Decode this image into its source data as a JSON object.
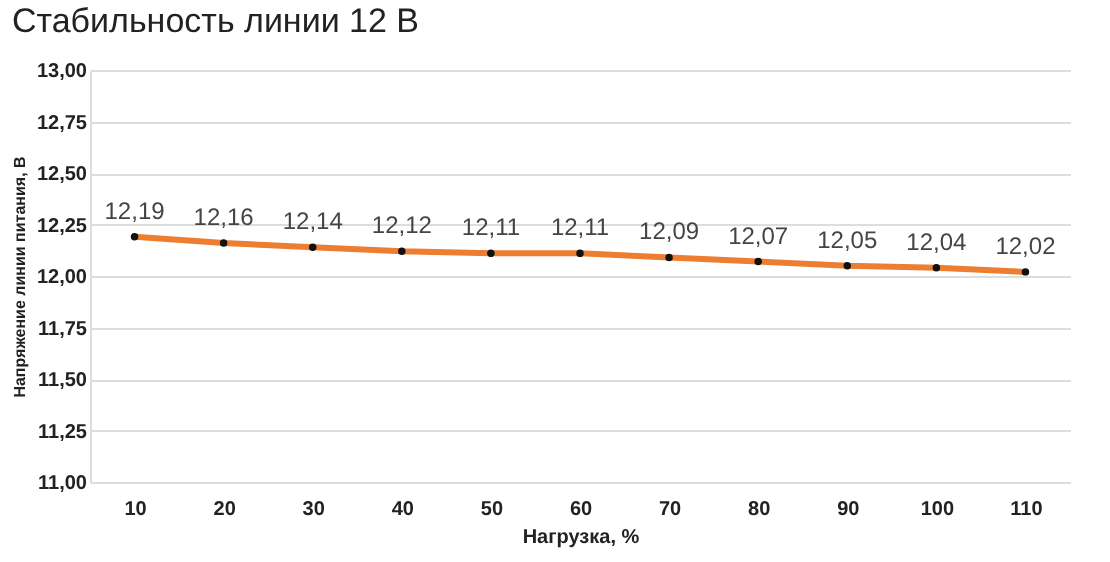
{
  "chart_data": {
    "type": "line",
    "title": "Стабильность линии 12 В",
    "xlabel": "Нагрузка, %",
    "ylabel": "Напряжение линии питания, В",
    "categories": [
      "10",
      "20",
      "30",
      "40",
      "50",
      "60",
      "70",
      "80",
      "90",
      "100",
      "110"
    ],
    "series": [
      {
        "color": "#ed7d31",
        "values": [
          12.19,
          12.16,
          12.14,
          12.12,
          12.11,
          12.11,
          12.09,
          12.07,
          12.05,
          12.04,
          12.02
        ],
        "value_labels": [
          "12,19",
          "12,16",
          "12,14",
          "12,12",
          "12,11",
          "12,11",
          "12,09",
          "12,07",
          "12,05",
          "12,04",
          "12,02"
        ]
      }
    ],
    "ylim": [
      11,
      13
    ],
    "yticks": [
      {
        "value": 11,
        "label": "11,00"
      },
      {
        "value": 11.25,
        "label": "11,25"
      },
      {
        "value": 11.5,
        "label": "11,50"
      },
      {
        "value": 11.75,
        "label": "11,75"
      },
      {
        "value": 12,
        "label": "12,00"
      },
      {
        "value": 12.25,
        "label": "12,25"
      },
      {
        "value": 12.5,
        "label": "12,50"
      },
      {
        "value": 12.75,
        "label": "12,75"
      },
      {
        "value": 13,
        "label": "13,00"
      }
    ],
    "grid": "y",
    "marker": "circle",
    "line_style": "solid"
  }
}
